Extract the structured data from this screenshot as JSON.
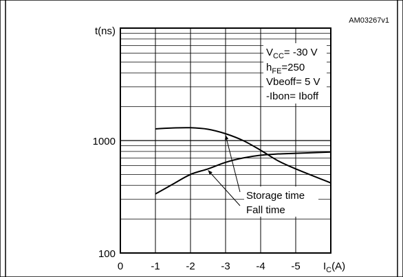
{
  "figure_id": "AM03267v1",
  "chart_data": {
    "type": "line",
    "yscale": "log",
    "ylabel": "t(ns)",
    "xlabel_main": "I",
    "xlabel_sub": "C",
    "xlabel_unit": "(A)",
    "x_ticks": [
      "0",
      "-1",
      "-2",
      "-3",
      "-4",
      "-5"
    ],
    "x_tick_values": [
      0,
      -1,
      -2,
      -3,
      -4,
      -5
    ],
    "y_ticks": [
      "100",
      "1000"
    ],
    "y_tick_values": [
      100,
      1000
    ],
    "xlim": [
      0,
      -6
    ],
    "ylim": [
      100,
      10000
    ],
    "grid": true,
    "conditions": [
      {
        "main": "V",
        "sub": "CC",
        "rest": "= -30 V"
      },
      {
        "main": "h",
        "sub": "FE",
        "rest": "=250"
      },
      {
        "main": "Vbeoff= 5 V",
        "sub": "",
        "rest": ""
      },
      {
        "main": "-Ibon= Iboff",
        "sub": "",
        "rest": ""
      }
    ],
    "series": [
      {
        "name": "Storage time",
        "x": [
          -1.0,
          -1.5,
          -2.0,
          -2.5,
          -3.0,
          -3.5,
          -4.0,
          -4.5,
          -5.0,
          -6.0
        ],
        "y": [
          1270,
          1295,
          1300,
          1260,
          1150,
          1000,
          820,
          660,
          560,
          420
        ]
      },
      {
        "name": "Fall time",
        "x": [
          -1.0,
          -1.5,
          -2.0,
          -2.5,
          -3.0,
          -3.5,
          -4.0,
          -4.5,
          -5.0,
          -6.0
        ],
        "y": [
          335,
          410,
          500,
          560,
          640,
          700,
          740,
          760,
          770,
          790
        ]
      }
    ],
    "annotations": [
      {
        "text": "Storage time",
        "series": 0,
        "target_x": -3.0,
        "target_y": 1150
      },
      {
        "text": "Fall time",
        "series": 1,
        "target_x": -2.5,
        "target_y": 560
      }
    ]
  }
}
